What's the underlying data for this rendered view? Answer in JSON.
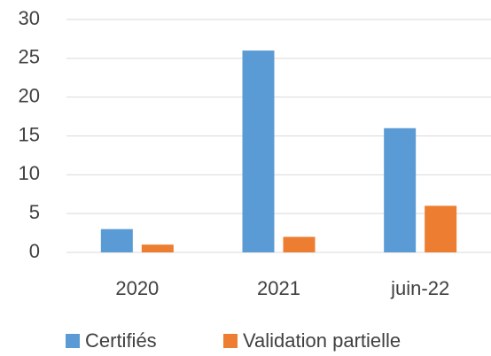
{
  "chart_data": {
    "type": "bar",
    "categories": [
      "2020",
      "2021",
      "juin-22"
    ],
    "series": [
      {
        "name": "Certifiés",
        "color": "#5b9bd5",
        "values": [
          3,
          26,
          16
        ]
      },
      {
        "name": "Validation partielle",
        "color": "#ed7d31",
        "values": [
          1,
          2,
          6
        ]
      }
    ],
    "ylim": [
      0,
      30
    ],
    "yticks": [
      0,
      5,
      10,
      15,
      20,
      25,
      30
    ],
    "grid": true,
    "legend": "bottom"
  }
}
